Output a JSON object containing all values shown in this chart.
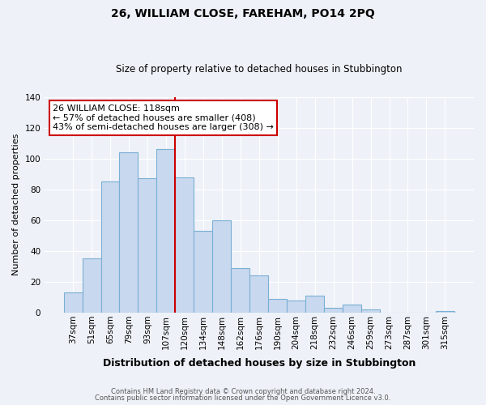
{
  "title": "26, WILLIAM CLOSE, FAREHAM, PO14 2PQ",
  "subtitle": "Size of property relative to detached houses in Stubbington",
  "xlabel": "Distribution of detached houses by size in Stubbington",
  "ylabel": "Number of detached properties",
  "bar_labels": [
    "37sqm",
    "51sqm",
    "65sqm",
    "79sqm",
    "93sqm",
    "107sqm",
    "120sqm",
    "134sqm",
    "148sqm",
    "162sqm",
    "176sqm",
    "190sqm",
    "204sqm",
    "218sqm",
    "232sqm",
    "246sqm",
    "259sqm",
    "273sqm",
    "287sqm",
    "301sqm",
    "315sqm"
  ],
  "bar_values": [
    13,
    35,
    85,
    104,
    87,
    106,
    88,
    53,
    60,
    29,
    24,
    9,
    8,
    11,
    3,
    5,
    2,
    0,
    0,
    0,
    1
  ],
  "bar_color": "#c8d8ee",
  "bar_edge_color": "#7aafd4",
  "vline_x": 5.5,
  "vline_color": "#cc0000",
  "annotation_title": "26 WILLIAM CLOSE: 118sqm",
  "annotation_line1": "← 57% of detached houses are smaller (408)",
  "annotation_line2": "43% of semi-detached houses are larger (308) →",
  "annotation_box_color": "#ffffff",
  "annotation_box_edge": "#cc0000",
  "ylim": [
    0,
    140
  ],
  "yticks": [
    0,
    20,
    40,
    60,
    80,
    100,
    120,
    140
  ],
  "footer1": "Contains HM Land Registry data © Crown copyright and database right 2024.",
  "footer2": "Contains public sector information licensed under the Open Government Licence v3.0.",
  "background_color": "#eef2f8",
  "grid_color": "#ffffff",
  "title_fontsize": 10,
  "subtitle_fontsize": 8.5,
  "xlabel_fontsize": 9,
  "ylabel_fontsize": 8,
  "tick_fontsize": 7.5,
  "annotation_fontsize": 8,
  "footer_fontsize": 6
}
